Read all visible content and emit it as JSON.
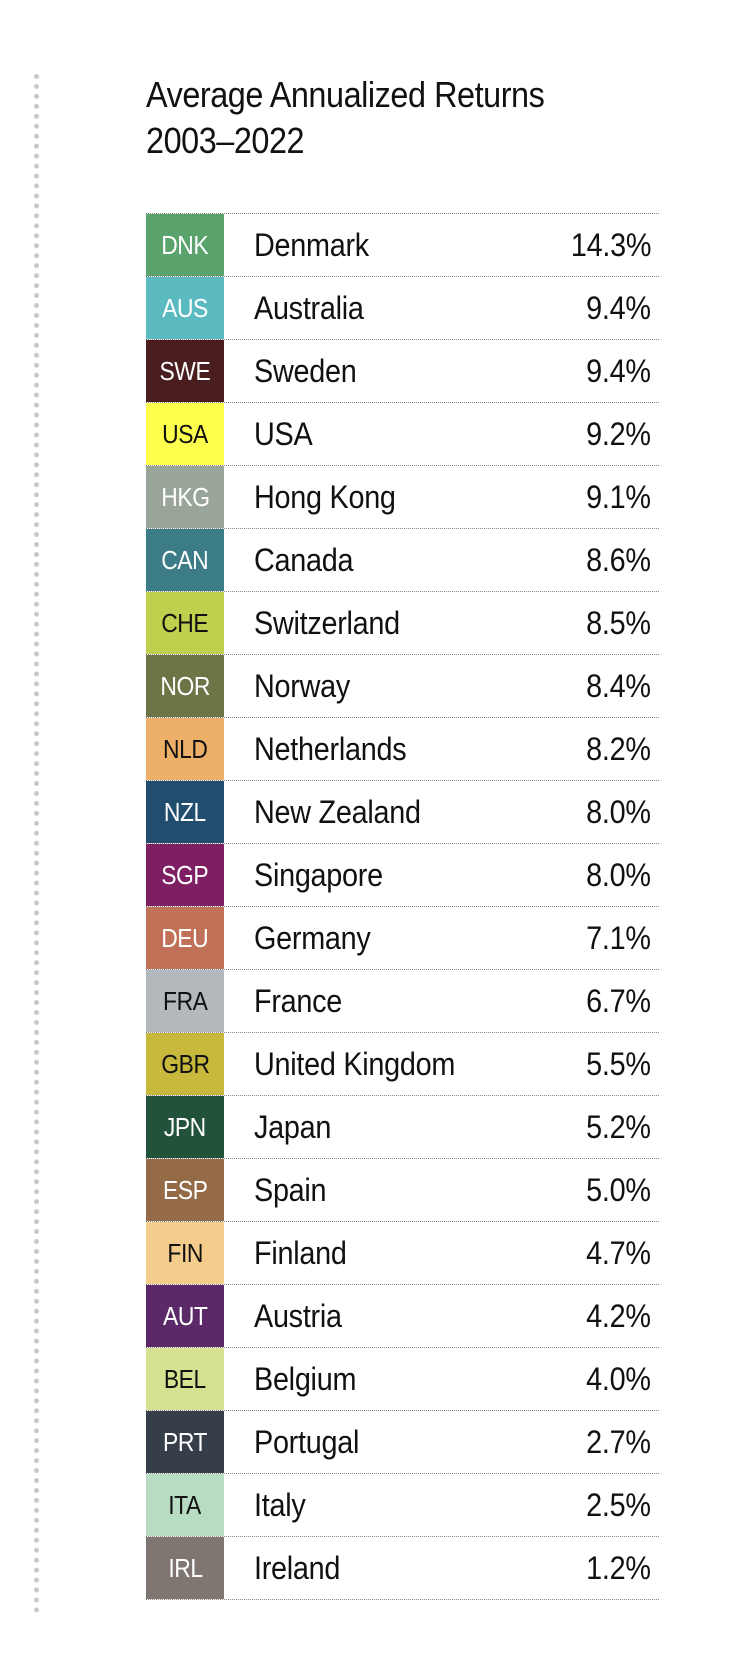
{
  "title": {
    "line1": "Average Annualized Returns",
    "line2": "2003–2022"
  },
  "rows": [
    {
      "code": "DNK",
      "country": "Denmark",
      "value": "14.3%",
      "bg": "#5aa36c",
      "fg": "#ffffff"
    },
    {
      "code": "AUS",
      "country": "Australia",
      "value": "9.4%",
      "bg": "#5bb9c0",
      "fg": "#ffffff"
    },
    {
      "code": "SWE",
      "country": "Sweden",
      "value": "9.4%",
      "bg": "#4a1e1e",
      "fg": "#ffffff"
    },
    {
      "code": "USA",
      "country": "USA",
      "value": "9.2%",
      "bg": "#ffff4d",
      "fg": "#111111"
    },
    {
      "code": "HKG",
      "country": "Hong Kong",
      "value": "9.1%",
      "bg": "#98a598",
      "fg": "#ffffff"
    },
    {
      "code": "CAN",
      "country": "Canada",
      "value": "8.6%",
      "bg": "#3b7c86",
      "fg": "#ffffff"
    },
    {
      "code": "CHE",
      "country": "Switzerland",
      "value": "8.5%",
      "bg": "#c0cf4e",
      "fg": "#111111"
    },
    {
      "code": "NOR",
      "country": "Norway",
      "value": "8.4%",
      "bg": "#6d7446",
      "fg": "#ffffff"
    },
    {
      "code": "NLD",
      "country": "Netherlands",
      "value": "8.2%",
      "bg": "#eeb069",
      "fg": "#111111"
    },
    {
      "code": "NZL",
      "country": "New Zealand",
      "value": "8.0%",
      "bg": "#214d6f",
      "fg": "#ffffff"
    },
    {
      "code": "SGP",
      "country": "Singapore",
      "value": "8.0%",
      "bg": "#7f1f63",
      "fg": "#ffffff"
    },
    {
      "code": "DEU",
      "country": "Germany",
      "value": "7.1%",
      "bg": "#c07158",
      "fg": "#ffffff"
    },
    {
      "code": "FRA",
      "country": "France",
      "value": "6.7%",
      "bg": "#b3b8bd",
      "fg": "#111111"
    },
    {
      "code": "GBR",
      "country": "United Kingdom",
      "value": "5.5%",
      "bg": "#c8b93d",
      "fg": "#111111"
    },
    {
      "code": "JPN",
      "country": "Japan",
      "value": "5.2%",
      "bg": "#23523b",
      "fg": "#ffffff"
    },
    {
      "code": "ESP",
      "country": "Spain",
      "value": "5.0%",
      "bg": "#956b47",
      "fg": "#ffffff"
    },
    {
      "code": "FIN",
      "country": "Finland",
      "value": "4.7%",
      "bg": "#f4cc8c",
      "fg": "#111111"
    },
    {
      "code": "AUT",
      "country": "Austria",
      "value": "4.2%",
      "bg": "#5b2868",
      "fg": "#ffffff"
    },
    {
      "code": "BEL",
      "country": "Belgium",
      "value": "4.0%",
      "bg": "#d6e291",
      "fg": "#111111"
    },
    {
      "code": "PRT",
      "country": "Portugal",
      "value": "2.7%",
      "bg": "#353e49",
      "fg": "#ffffff"
    },
    {
      "code": "ITA",
      "country": "Italy",
      "value": "2.5%",
      "bg": "#b8dcc2",
      "fg": "#111111"
    },
    {
      "code": "IRL",
      "country": "Ireland",
      "value": "1.2%",
      "bg": "#7f7672",
      "fg": "#ffffff"
    }
  ]
}
